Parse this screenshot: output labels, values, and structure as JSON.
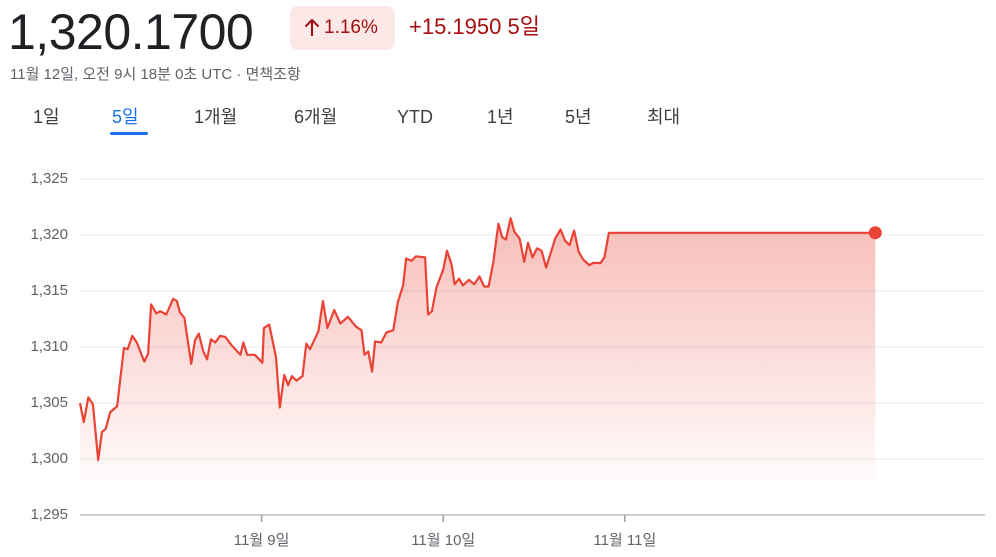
{
  "header": {
    "price": "1,320.1700",
    "change_pct": "1.16%",
    "change": "+15.1950",
    "period": "5일",
    "timestamp": "11월 12일, 오전 9시 18분 0초 UTC · ",
    "disclaimer": "면책조항"
  },
  "tabs": [
    "1일",
    "5일",
    "1개월",
    "6개월",
    "YTD",
    "1년",
    "5년",
    "최대"
  ],
  "selected_tab": 1,
  "chart_data": {
    "type": "line",
    "color": "#ea4335",
    "x": [
      0,
      0.5,
      1.1,
      1.7,
      2.4,
      2.9,
      3.4,
      4.0,
      4.9,
      5.8,
      6.3,
      6.9,
      7.5,
      8.5,
      9.0,
      9.4,
      10.1,
      10.6,
      11.4,
      12.3,
      12.8,
      13.2,
      13.8,
      14.7,
      15.2,
      15.7,
      16.3,
      16.8,
      17.3,
      17.9,
      18.5,
      19.2,
      20.1,
      21.2,
      21.6,
      22.1,
      23.1,
      24.1,
      24.3,
      25.0,
      25.9,
      26.4,
      27.0,
      27.5,
      28.0,
      28.6,
      29.4,
      29.9,
      30.4,
      31.5,
      32.1,
      32.7,
      33.6,
      34.4,
      35.4,
      36.5,
      37.2,
      37.6,
      38.1,
      38.6,
      39.0,
      39.8,
      40.5,
      41.4,
      42.0,
      42.7,
      43.1,
      43.8,
      44.4,
      45.6,
      46.0,
      46.5,
      47.1,
      48.0,
      48.5,
      49.1,
      49.5,
      50.1,
      50.6,
      51.4,
      52.1,
      52.8,
      53.4,
      54.0,
      54.6,
      55.3,
      55.8,
      56.3,
      56.9,
      57.4,
      58.1,
      58.7,
      59.2,
      59.8,
      60.4,
      61.0,
      61.6,
      62.3,
      62.8,
      63.5,
      64.1,
      64.7,
      65.3,
      65.9,
      66.5,
      67.3,
      67.8,
      68.8,
      69.3,
      69.9,
      105.1
    ],
    "values": [
      1305.0,
      1303.3,
      1305.5,
      1304.9,
      1299.9,
      1302.4,
      1302.7,
      1304.2,
      1304.7,
      1309.9,
      1309.8,
      1311.0,
      1310.4,
      1308.7,
      1309.4,
      1313.8,
      1313.0,
      1313.2,
      1312.9,
      1314.3,
      1314.1,
      1313.1,
      1312.6,
      1308.5,
      1310.6,
      1311.2,
      1309.6,
      1308.9,
      1310.7,
      1310.4,
      1311.0,
      1310.9,
      1310.1,
      1309.3,
      1310.4,
      1309.3,
      1309.3,
      1308.6,
      1311.7,
      1312.0,
      1309.1,
      1304.6,
      1307.5,
      1306.6,
      1307.4,
      1307.0,
      1307.4,
      1310.3,
      1309.8,
      1311.4,
      1314.1,
      1311.7,
      1313.3,
      1312.1,
      1312.7,
      1311.8,
      1311.5,
      1309.3,
      1309.6,
      1307.8,
      1310.5,
      1310.4,
      1311.3,
      1311.5,
      1314.0,
      1315.5,
      1317.9,
      1317.7,
      1318.1,
      1318.0,
      1312.9,
      1313.2,
      1315.3,
      1316.9,
      1318.6,
      1317.4,
      1315.6,
      1316.1,
      1315.5,
      1316.0,
      1315.6,
      1316.3,
      1315.4,
      1315.4,
      1317.5,
      1321.0,
      1319.8,
      1319.6,
      1321.5,
      1320.3,
      1319.7,
      1317.6,
      1319.3,
      1318.0,
      1318.8,
      1318.6,
      1317.1,
      1318.6,
      1319.7,
      1320.5,
      1319.5,
      1319.1,
      1320.4,
      1318.5,
      1317.8,
      1317.3,
      1317.5,
      1317.5,
      1318.0,
      1320.2,
      1320.2
    ],
    "xlim": [
      0,
      119.6
    ],
    "xticks": [
      {
        "value": 24,
        "label": "11월 9일"
      },
      {
        "value": 48,
        "label": "11월 10일"
      },
      {
        "value": 72,
        "label": "11월 11일"
      }
    ],
    "ylim": [
      1295,
      1325
    ],
    "yticks": [
      {
        "value": 1295,
        "label": "1,295"
      },
      {
        "value": 1300,
        "label": "1,300"
      },
      {
        "value": 1305,
        "label": "1,305"
      },
      {
        "value": 1310,
        "label": "1,310"
      },
      {
        "value": 1315,
        "label": "1,315"
      },
      {
        "value": 1320,
        "label": "1,320"
      },
      {
        "value": 1325,
        "label": "1,325"
      }
    ],
    "grid": true
  }
}
